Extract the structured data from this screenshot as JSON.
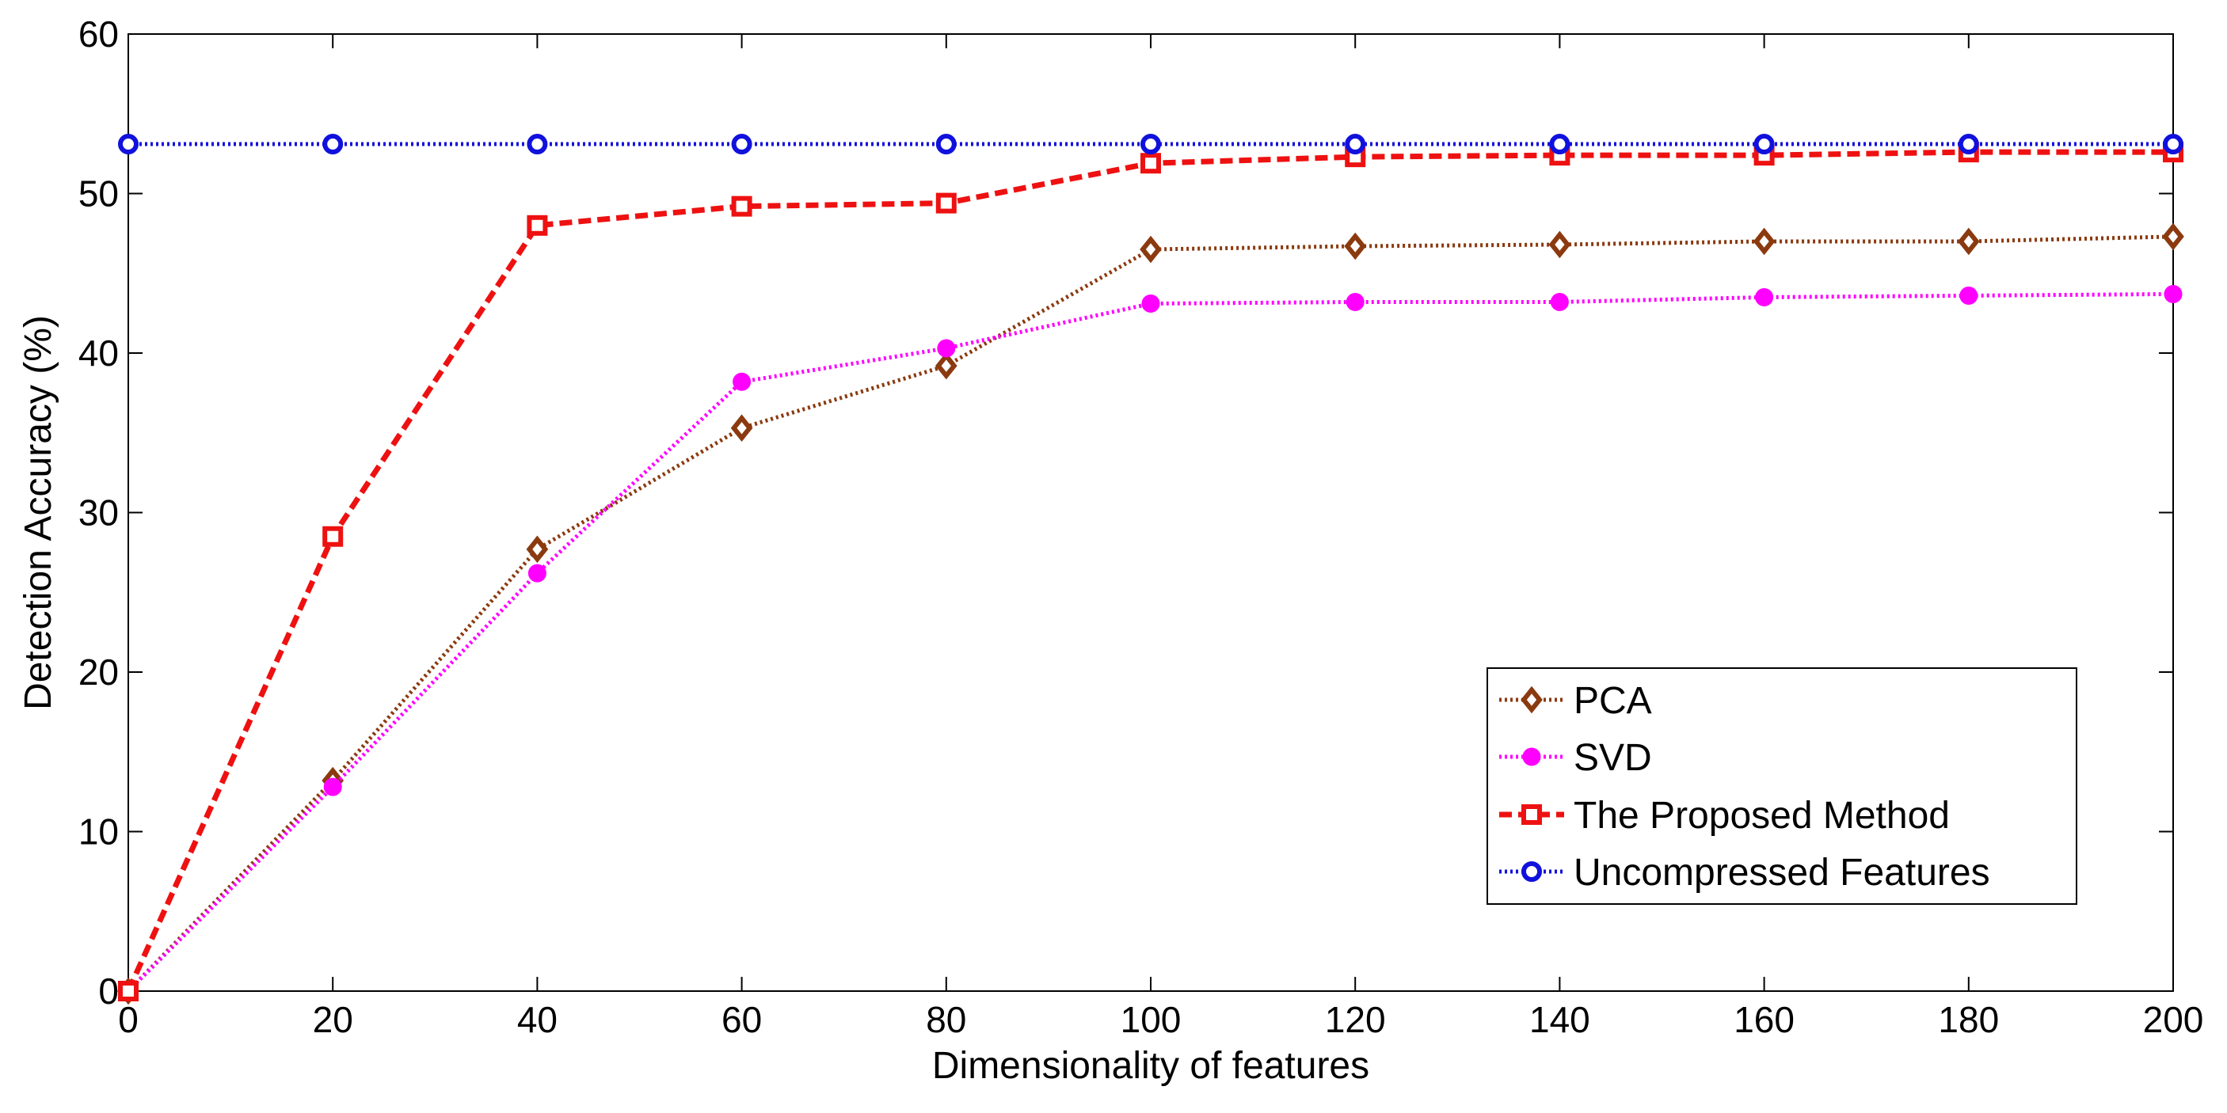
{
  "chart_data": {
    "type": "line",
    "title": "",
    "xlabel": "Dimensionality of features",
    "ylabel": "Detection Accuracy (%)",
    "xlim": [
      0,
      200
    ],
    "ylim": [
      0,
      60
    ],
    "xticks": [
      0,
      20,
      40,
      60,
      80,
      100,
      120,
      140,
      160,
      180,
      200
    ],
    "yticks": [
      0,
      10,
      20,
      30,
      40,
      50,
      60
    ],
    "xtick_labels": [
      "0",
      "20",
      "40",
      "60",
      "80",
      "100",
      "120",
      "140",
      "160",
      "180",
      "200"
    ],
    "ytick_labels": [
      "0",
      "10",
      "20",
      "30",
      "40",
      "50",
      "60"
    ],
    "grid": false,
    "legend_position": "bottom-right",
    "x": [
      0,
      20,
      40,
      60,
      80,
      100,
      120,
      140,
      160,
      180,
      200
    ],
    "series": [
      {
        "key": "pca",
        "name": "PCA",
        "color": "#8B3A0F",
        "line_style": "dotted",
        "marker": "diamond",
        "values": [
          0,
          13.2,
          27.7,
          35.3,
          39.2,
          46.5,
          46.7,
          46.8,
          47.0,
          47.0,
          47.3
        ]
      },
      {
        "key": "svd",
        "name": "SVD",
        "color": "#FF00FF",
        "line_style": "dotted",
        "marker": "circle",
        "values": [
          0,
          12.8,
          26.2,
          38.2,
          40.3,
          43.1,
          43.2,
          43.2,
          43.5,
          43.6,
          43.7
        ]
      },
      {
        "key": "proposed",
        "name": "The Proposed Method",
        "color": "#EE1111",
        "line_style": "dashed",
        "marker": "square",
        "values": [
          0,
          28.5,
          48.0,
          49.2,
          49.4,
          51.9,
          52.3,
          52.4,
          52.4,
          52.6,
          52.6
        ]
      },
      {
        "key": "uncompressed",
        "name": "Uncompressed Features",
        "color": "#1111DD",
        "line_style": "dotted",
        "marker": "circle",
        "values": [
          53.1,
          53.1,
          53.1,
          53.1,
          53.1,
          53.1,
          53.1,
          53.1,
          53.1,
          53.1,
          53.1
        ]
      }
    ]
  }
}
